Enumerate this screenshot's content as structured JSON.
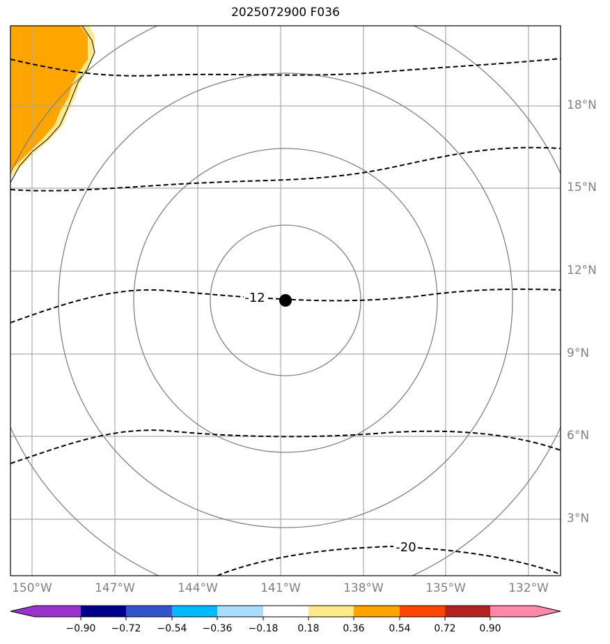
{
  "title": "2025072900 F036",
  "map": {
    "lon_labels": [
      "150°W",
      "147°W",
      "144°W",
      "141°W",
      "138°W",
      "135°W",
      "132°W"
    ],
    "lat_labels": [
      "18°N",
      "15°N",
      "12°N",
      "9°N",
      "6°N",
      "3°N"
    ],
    "storm_center": {
      "lon": -141.2,
      "lat": 10.9
    },
    "range_rings_deg": [
      2.7,
      5.5,
      8.3,
      11.0
    ],
    "contour_labels": [
      "-12",
      "-20"
    ],
    "colors": {
      "orange_fill": "#ffa500",
      "yellow_fill": "#ffe98a",
      "contour": "#000000",
      "grid": "#aaaaaa",
      "ring": "#808080"
    }
  },
  "colorbar": {
    "ticks": [
      "−0.90",
      "−0.72",
      "−0.54",
      "−0.36",
      "−0.18",
      "0.18",
      "0.36",
      "0.54",
      "0.72",
      "0.90"
    ],
    "under_color": "#9933cc",
    "over_color": "#ff88aa",
    "bins": [
      "#000088",
      "#3355cc",
      "#00bbff",
      "#aaddff",
      "#ffffff",
      "#ffe98a",
      "#ffa500",
      "#ff4400",
      "#b22222"
    ]
  }
}
